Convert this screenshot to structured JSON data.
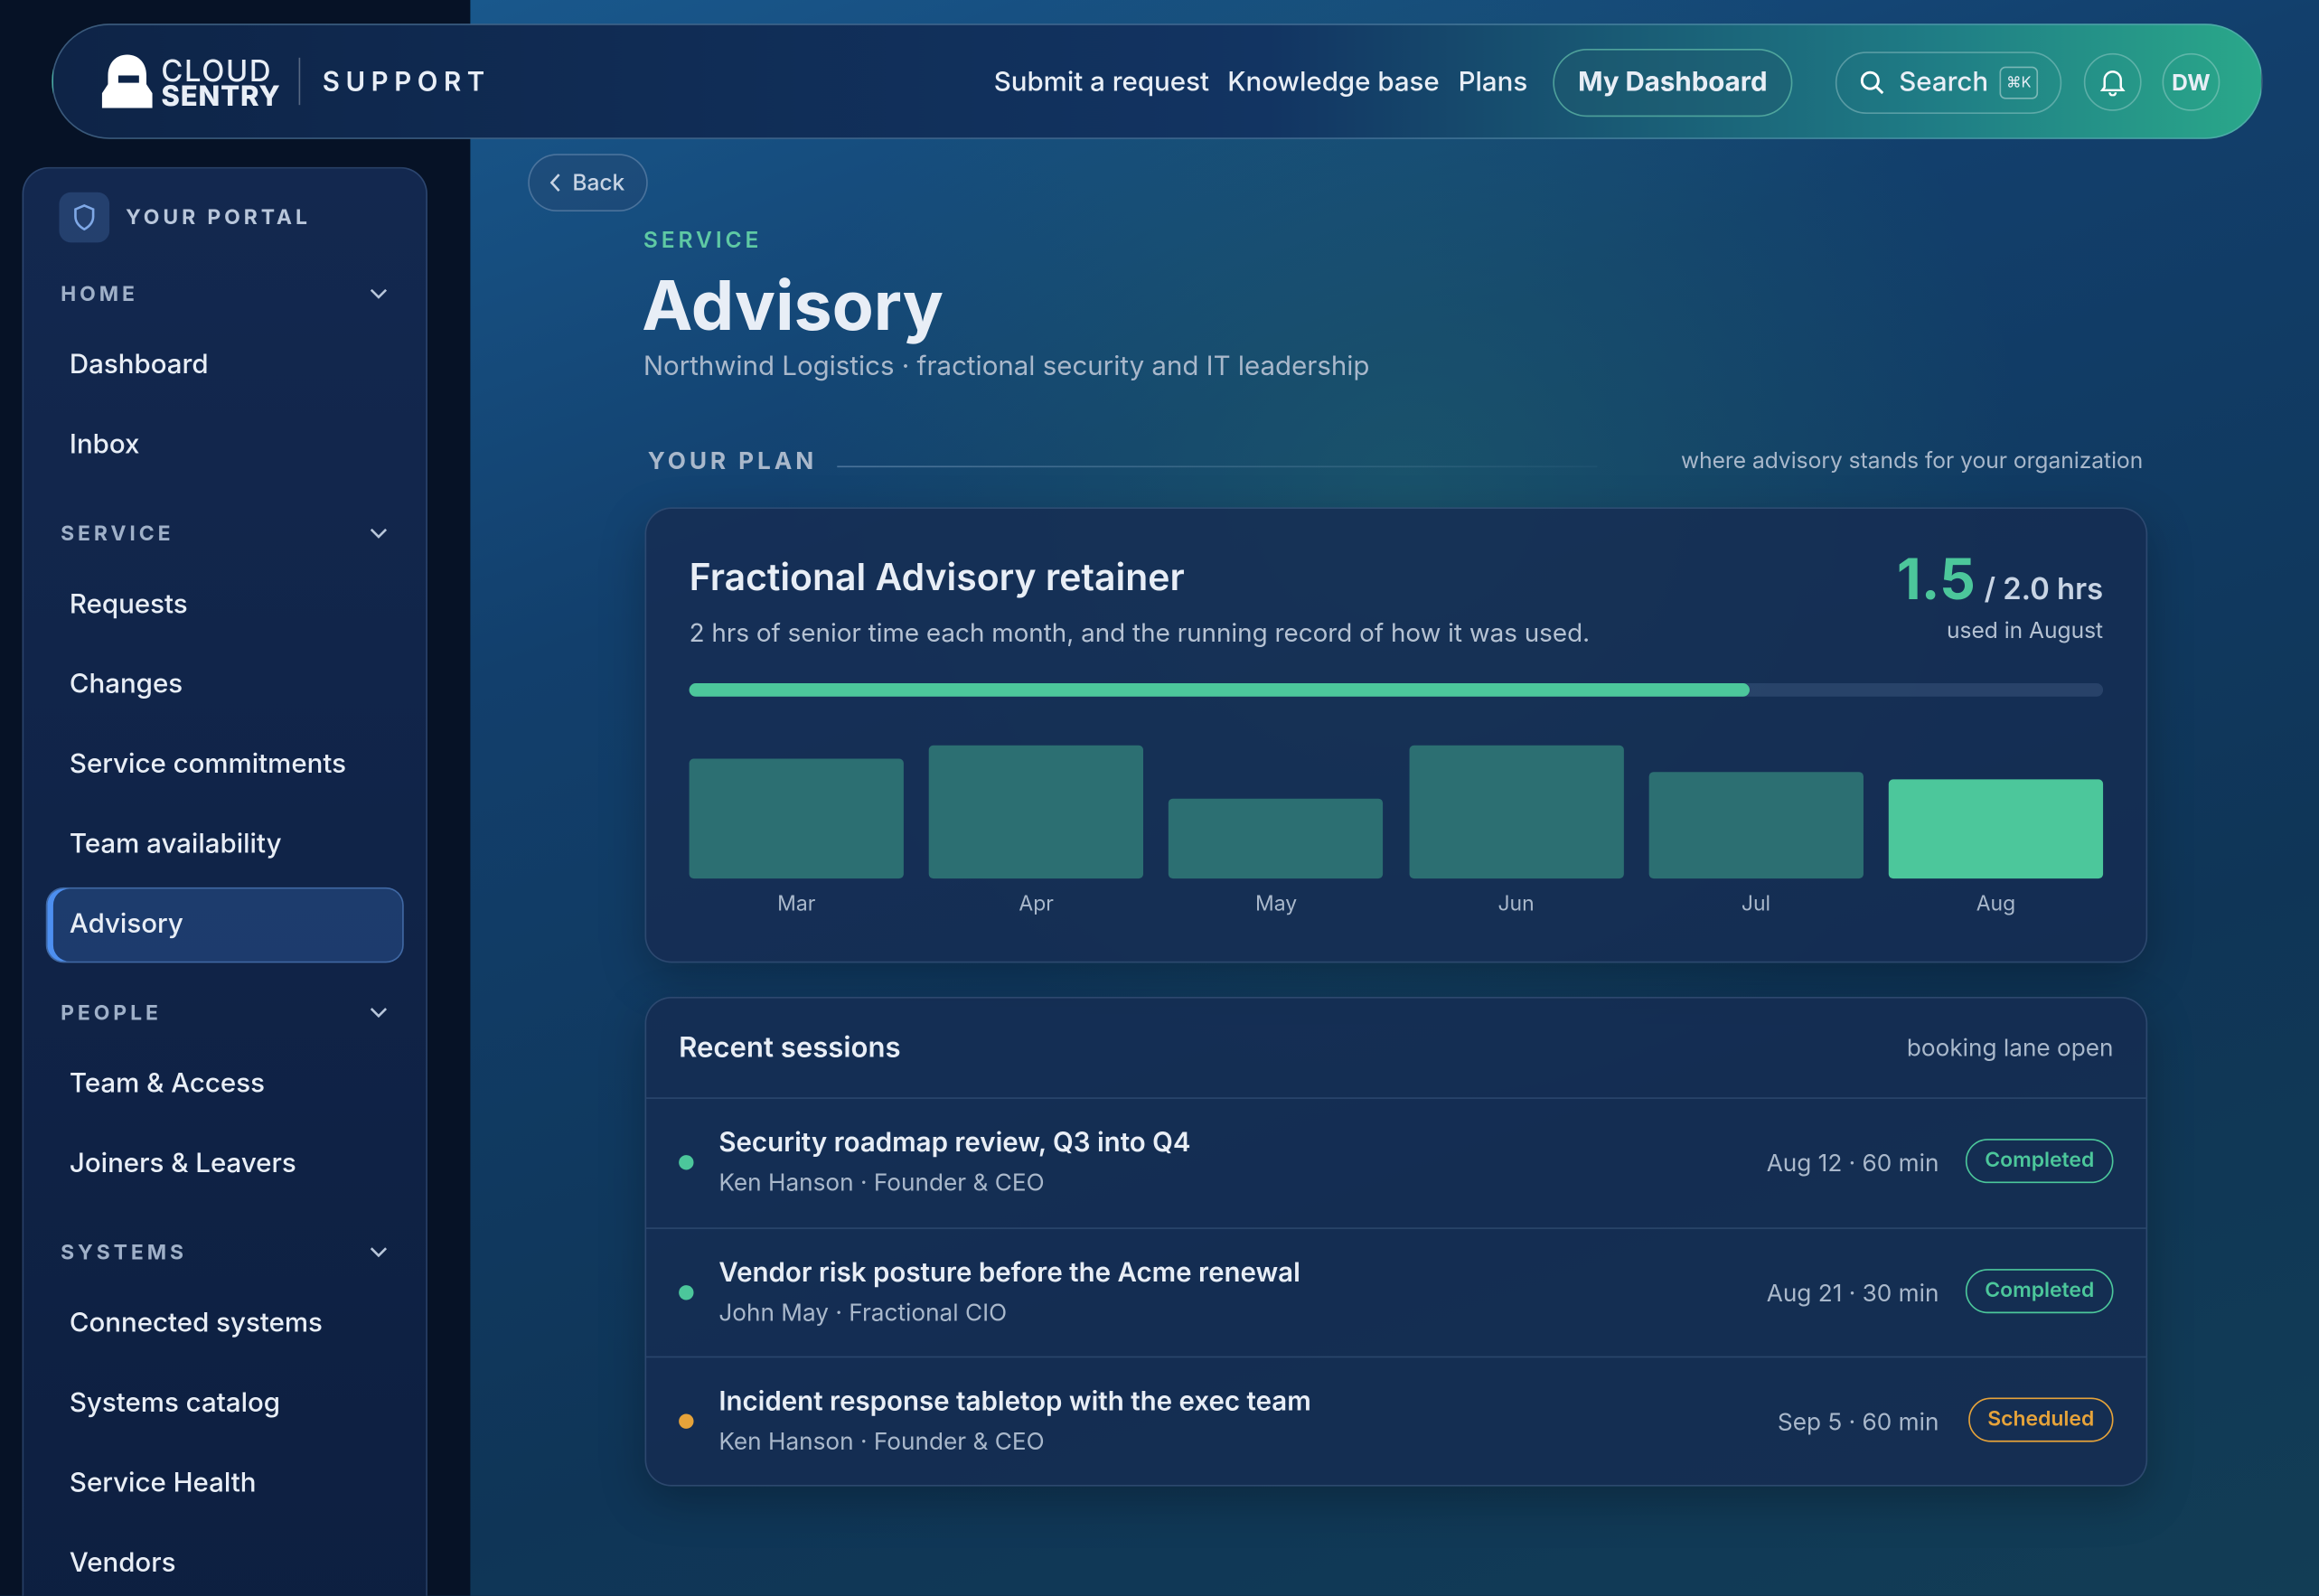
{
  "header": {
    "brand_top": "CLOUD",
    "brand_bottom": "SENTRY",
    "product": "SUPPORT",
    "nav": [
      "Submit a request",
      "Knowledge base",
      "Plans"
    ],
    "primary_action": "My Dashboard",
    "search": "Search",
    "shortcut": "⌘K",
    "avatar": "DW"
  },
  "sidebar": {
    "title": "YOUR PORTAL",
    "active": "Advisory",
    "sections": [
      {
        "label": "HOME",
        "items": [
          "Dashboard",
          "Inbox"
        ]
      },
      {
        "label": "SERVICE",
        "items": [
          "Requests",
          "Changes",
          "Service commitments",
          "Team availability",
          "Advisory"
        ]
      },
      {
        "label": "PEOPLE",
        "items": [
          "Team & Access",
          "Joiners & Leavers"
        ]
      },
      {
        "label": "SYSTEMS",
        "items": [
          "Connected systems",
          "Systems catalog",
          "Service Health",
          "Vendors"
        ]
      }
    ]
  },
  "page": {
    "back": "Back",
    "eyebrow": "SERVICE",
    "title": "Advisory",
    "subtitle": "Northwind Logistics · fractional security and IT leadership",
    "section_label": "YOUR PLAN",
    "section_note": "where advisory stands for your organization"
  },
  "plan": {
    "title": "Fractional Advisory retainer",
    "description": "2 hrs of senior time each month, and the running record of how it was used.",
    "used": 1.5,
    "limit": {
      "value": 2.0,
      "label": "/ 2.0 hrs"
    },
    "used_caption": "used in August",
    "progress_color": "#4cc79b",
    "chart": {
      "type": "bar",
      "categories": [
        "Mar",
        "Apr",
        "May",
        "Jun",
        "Jul",
        "Aug"
      ],
      "values": [
        1.8,
        2.0,
        1.2,
        2.0,
        1.6,
        1.5
      ],
      "colors": [
        "#2c6f72",
        "#2c6f72",
        "#2c6f72",
        "#2c6f72",
        "#2c6f72",
        "#4cc79b"
      ],
      "ylim": [
        0,
        2.0
      ]
    }
  },
  "sessions": {
    "title": "Recent sessions",
    "note": "booking lane open",
    "items": [
      {
        "title": "Security roadmap review, Q3 into Q4",
        "meta": "Ken Hanson · Founder & CEO",
        "when": "Aug 12 · 60 min",
        "status": "Completed",
        "color": "#4cc79b"
      },
      {
        "title": "Vendor risk posture before the Acme renewal",
        "meta": "John May · Fractional CIO",
        "when": "Aug 21 · 30 min",
        "status": "Completed",
        "color": "#4cc79b"
      },
      {
        "title": "Incident response tabletop with the exec team",
        "meta": "Ken Hanson · Founder & CEO",
        "when": "Sep 5 · 60 min",
        "status": "Scheduled",
        "color": "#e6a33a"
      }
    ]
  }
}
